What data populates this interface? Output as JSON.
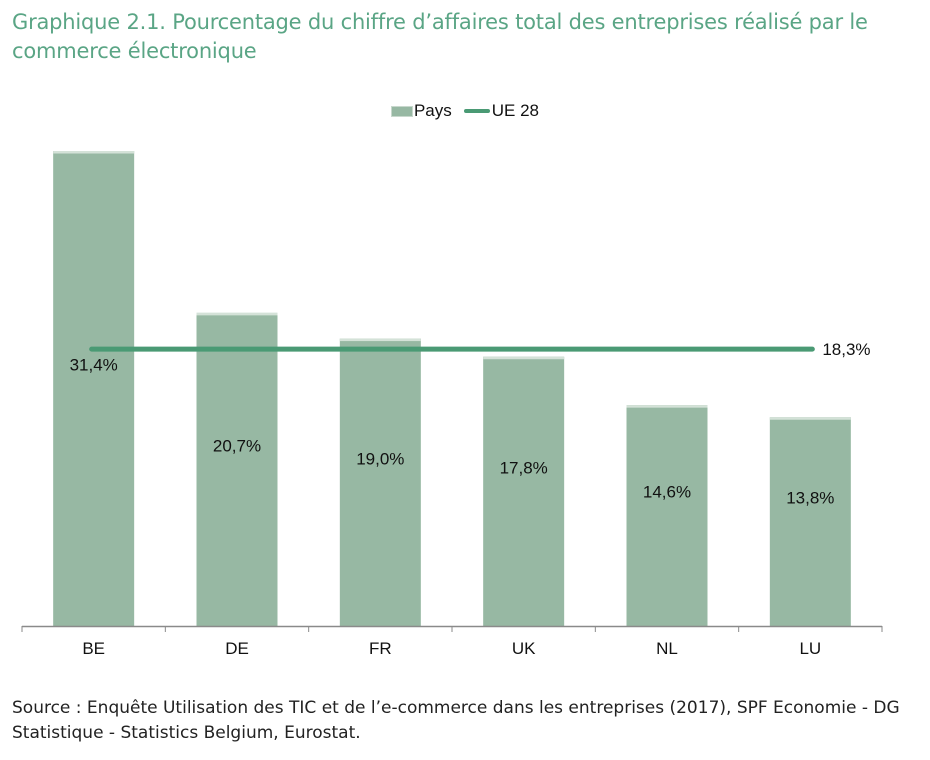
{
  "title": "Graphique 2.1. Pourcentage du chiffre d’affaires total des entreprises réalisé par le commerce électronique",
  "source": "Source : Enquête Utilisation des TIC et de l’e-commerce dans les entreprises (2017), SPF Economie - DG Statistique - Statistics Belgium, Eurostat.",
  "colors": {
    "bar": "#97b8a3",
    "bar_top": "#d4e2d8",
    "line": "#4a9a74",
    "title": "#5aa585",
    "axis": "#8a8a8a"
  },
  "chart_data": {
    "type": "bar",
    "title": "Graphique 2.1. Pourcentage du chiffre d’affaires total des entreprises réalisé par le commerce électronique",
    "xlabel": "",
    "ylabel": "",
    "categories": [
      "BE",
      "DE",
      "FR",
      "UK",
      "NL",
      "LU"
    ],
    "series": [
      {
        "name": "Pays",
        "type": "bar",
        "values": [
          31.4,
          20.7,
          19.0,
          17.8,
          14.6,
          13.8
        ],
        "labels": [
          "31,4%",
          "20,7%",
          "19,0%",
          "17,8%",
          "14,6%",
          "13,8%"
        ]
      },
      {
        "name": "UE 28",
        "type": "line",
        "value": 18.3,
        "label": "18,3%"
      }
    ],
    "ylim": [
      0,
      31.4
    ],
    "grid": false,
    "legend": "top-center"
  }
}
